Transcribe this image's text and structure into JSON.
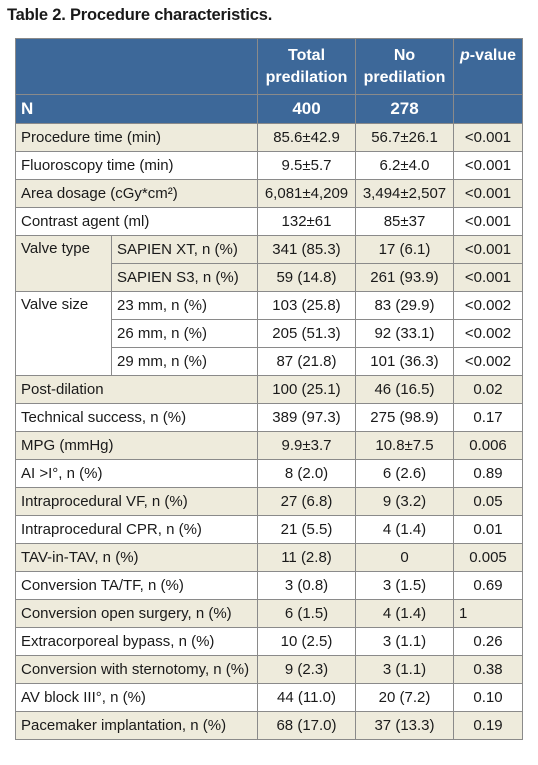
{
  "caption": "Table 2. Procedure characteristics.",
  "headers": {
    "total_line1": "Total",
    "total_line2": "predilation",
    "no_line1": "No",
    "no_line2": "predilation",
    "pvalue_italic": "p",
    "pvalue_rest": "-value"
  },
  "n_row": {
    "label": "N",
    "total": "400",
    "no": "278",
    "p": ""
  },
  "rows": [
    {
      "label": "Procedure time (min)",
      "total": "85.6±42.9",
      "no": "56.7±26.1",
      "p": "<0.001"
    },
    {
      "label": "Fluoroscopy time (min)",
      "total": "9.5±5.7",
      "no": "6.2±4.0",
      "p": "<0.001"
    },
    {
      "label": "Area dosage (cGy*cm²)",
      "total": "6,081±4,209",
      "no": "3,494±2,507",
      "p": "<0.001"
    },
    {
      "label": "Contrast agent (ml)",
      "total": "132±61",
      "no": "85±37",
      "p": "<0.001"
    }
  ],
  "valve_type": {
    "label": "Valve type",
    "items": [
      {
        "label": "SAPIEN XT, n (%)",
        "total": "341 (85.3)",
        "no": "17 (6.1)",
        "p": "<0.001"
      },
      {
        "label": "SAPIEN S3, n (%)",
        "total": "59 (14.8)",
        "no": "261 (93.9)",
        "p": "<0.001"
      }
    ]
  },
  "valve_size": {
    "label": "Valve size",
    "items": [
      {
        "label": "23 mm, n (%)",
        "total": "103 (25.8)",
        "no": "83 (29.9)",
        "p": "<0.002"
      },
      {
        "label": "26 mm, n (%)",
        "total": "205 (51.3)",
        "no": "92 (33.1)",
        "p": "<0.002"
      },
      {
        "label": "29 mm, n (%)",
        "total": "87 (21.8)",
        "no": "101 (36.3)",
        "p": "<0.002"
      }
    ]
  },
  "rows2": [
    {
      "label": "Post-dilation",
      "total": "100 (25.1)",
      "no": "46 (16.5)",
      "p": "0.02"
    },
    {
      "label": "Technical success, n (%)",
      "total": "389 (97.3)",
      "no": "275 (98.9)",
      "p": "0.17"
    },
    {
      "label": "MPG (mmHg)",
      "total": "9.9±3.7",
      "no": "10.8±7.5",
      "p": "0.006"
    },
    {
      "label": "AI >I°, n (%)",
      "total": "8 (2.0)",
      "no": "6 (2.6)",
      "p": "0.89"
    },
    {
      "label": "Intraprocedural VF, n (%)",
      "total": "27 (6.8)",
      "no": "9 (3.2)",
      "p": "0.05"
    },
    {
      "label": "Intraprocedural CPR, n (%)",
      "total": "21 (5.5)",
      "no": "4 (1.4)",
      "p": "0.01"
    },
    {
      "label": "TAV-in-TAV, n (%)",
      "total": "11 (2.8)",
      "no": "0",
      "p": "0.005"
    },
    {
      "label": "Conversion TA/TF, n (%)",
      "total": "3 (0.8)",
      "no": "3 (1.5)",
      "p": "0.69"
    },
    {
      "label": "Conversion open surgery, n (%)",
      "total": "6 (1.5)",
      "no": "4 (1.4)",
      "p": "1",
      "p_align": "left"
    },
    {
      "label": "Extracorporeal bypass, n (%)",
      "total": "10 (2.5)",
      "no": "3 (1.1)",
      "p": "0.26"
    },
    {
      "label": "Conversion with sternotomy, n (%)",
      "total": "9 (2.3)",
      "no": "3 (1.1)",
      "p": "0.38"
    },
    {
      "label": "AV block III°, n (%)",
      "total": "44 (11.0)",
      "no": "20 (7.2)",
      "p": "0.10"
    },
    {
      "label": "Pacemaker implantation, n (%)",
      "total": "68 (17.0)",
      "no": "37 (13.3)",
      "p": "0.19"
    }
  ]
}
